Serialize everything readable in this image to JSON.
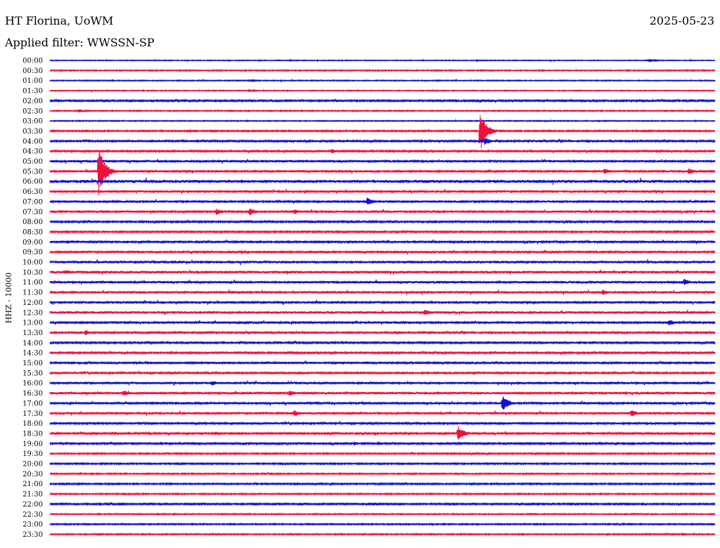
{
  "header": {
    "station": "HT Florina, UoWM",
    "date": "2025-05-23",
    "filter": "Applied filter: WWSSN-SP"
  },
  "chart_data": {
    "type": "line",
    "title": "HT Florina, UoWM",
    "subtitle": "Applied filter: WWSSN-SP",
    "date": "2025-05-23",
    "ylabel": "HHZ - 10000",
    "xlabel": "",
    "trace_labels": [
      "00:00",
      "00:30",
      "01:00",
      "01:30",
      "02:00",
      "02:30",
      "03:00",
      "03:30",
      "04:00",
      "04:30",
      "05:00",
      "05:30",
      "06:00",
      "06:30",
      "07:00",
      "07:30",
      "08:00",
      "08:30",
      "09:00",
      "09:30",
      "10:00",
      "10:30",
      "11:00",
      "11:30",
      "12:00",
      "12:30",
      "13:00",
      "13:30",
      "14:00",
      "14:30",
      "15:00",
      "15:30",
      "16:00",
      "16:30",
      "17:00",
      "17:30",
      "18:00",
      "18:30",
      "19:00",
      "19:30",
      "20:00",
      "20:30",
      "21:00",
      "21:30",
      "22:00",
      "22:30",
      "23:00",
      "23:30"
    ],
    "trace_minutes": 30,
    "colors": [
      "#1010d0",
      "#f0103c"
    ],
    "noise_levels": [
      0.6,
      0.8,
      0.7,
      0.7,
      1.2,
      0.8,
      0.7,
      1.0,
      1.3,
      1.4,
      1.5,
      1.6,
      2.2,
      1.6,
      1.5,
      1.6,
      1.2,
      1.1,
      1.4,
      1.6,
      1.8,
      1.8,
      1.6,
      1.7,
      1.5,
      1.8,
      1.4,
      1.3,
      1.3,
      1.2,
      1.4,
      1.4,
      1.6,
      1.6,
      1.4,
      1.6,
      1.4,
      1.3,
      1.3,
      1.0,
      1.0,
      0.9,
      1.0,
      0.9,
      1.1,
      0.8,
      0.9,
      0.9
    ],
    "events": [
      {
        "trace": 0,
        "minute": 27.0,
        "amplitude": 3
      },
      {
        "trace": 2,
        "minute": 9.0,
        "amplitude": 2
      },
      {
        "trace": 3,
        "minute": 9.0,
        "amplitude": 2
      },
      {
        "trace": 5,
        "minute": 1.3,
        "amplitude": 3
      },
      {
        "trace": 7,
        "minute": 19.4,
        "amplitude": 30
      },
      {
        "trace": 8,
        "minute": 19.6,
        "amplitude": 6
      },
      {
        "trace": 9,
        "minute": 12.7,
        "amplitude": 4
      },
      {
        "trace": 11,
        "minute": 2.2,
        "amplitude": 35
      },
      {
        "trace": 11,
        "minute": 25.0,
        "amplitude": 5
      },
      {
        "trace": 11,
        "minute": 28.8,
        "amplitude": 5
      },
      {
        "trace": 14,
        "minute": 14.3,
        "amplitude": 6
      },
      {
        "trace": 15,
        "minute": 7.5,
        "amplitude": 5
      },
      {
        "trace": 15,
        "minute": 9.0,
        "amplitude": 6
      },
      {
        "trace": 15,
        "minute": 11.0,
        "amplitude": 4
      },
      {
        "trace": 21,
        "minute": 0.7,
        "amplitude": 4
      },
      {
        "trace": 22,
        "minute": 28.6,
        "amplitude": 5
      },
      {
        "trace": 23,
        "minute": 24.9,
        "amplitude": 5
      },
      {
        "trace": 25,
        "minute": 16.9,
        "amplitude": 5
      },
      {
        "trace": 26,
        "minute": 27.9,
        "amplitude": 5
      },
      {
        "trace": 27,
        "minute": 1.6,
        "amplitude": 4
      },
      {
        "trace": 32,
        "minute": 7.3,
        "amplitude": 4
      },
      {
        "trace": 33,
        "minute": 3.3,
        "amplitude": 5
      },
      {
        "trace": 33,
        "minute": 10.8,
        "amplitude": 5
      },
      {
        "trace": 34,
        "minute": 20.4,
        "amplitude": 12
      },
      {
        "trace": 35,
        "minute": 11.0,
        "amplitude": 5
      },
      {
        "trace": 35,
        "minute": 26.2,
        "amplitude": 6
      },
      {
        "trace": 37,
        "minute": 18.4,
        "amplitude": 12
      },
      {
        "trace": 38,
        "minute": 13.7,
        "amplitude": 3
      },
      {
        "trace": 38,
        "minute": 14.8,
        "amplitude": 3
      }
    ]
  }
}
